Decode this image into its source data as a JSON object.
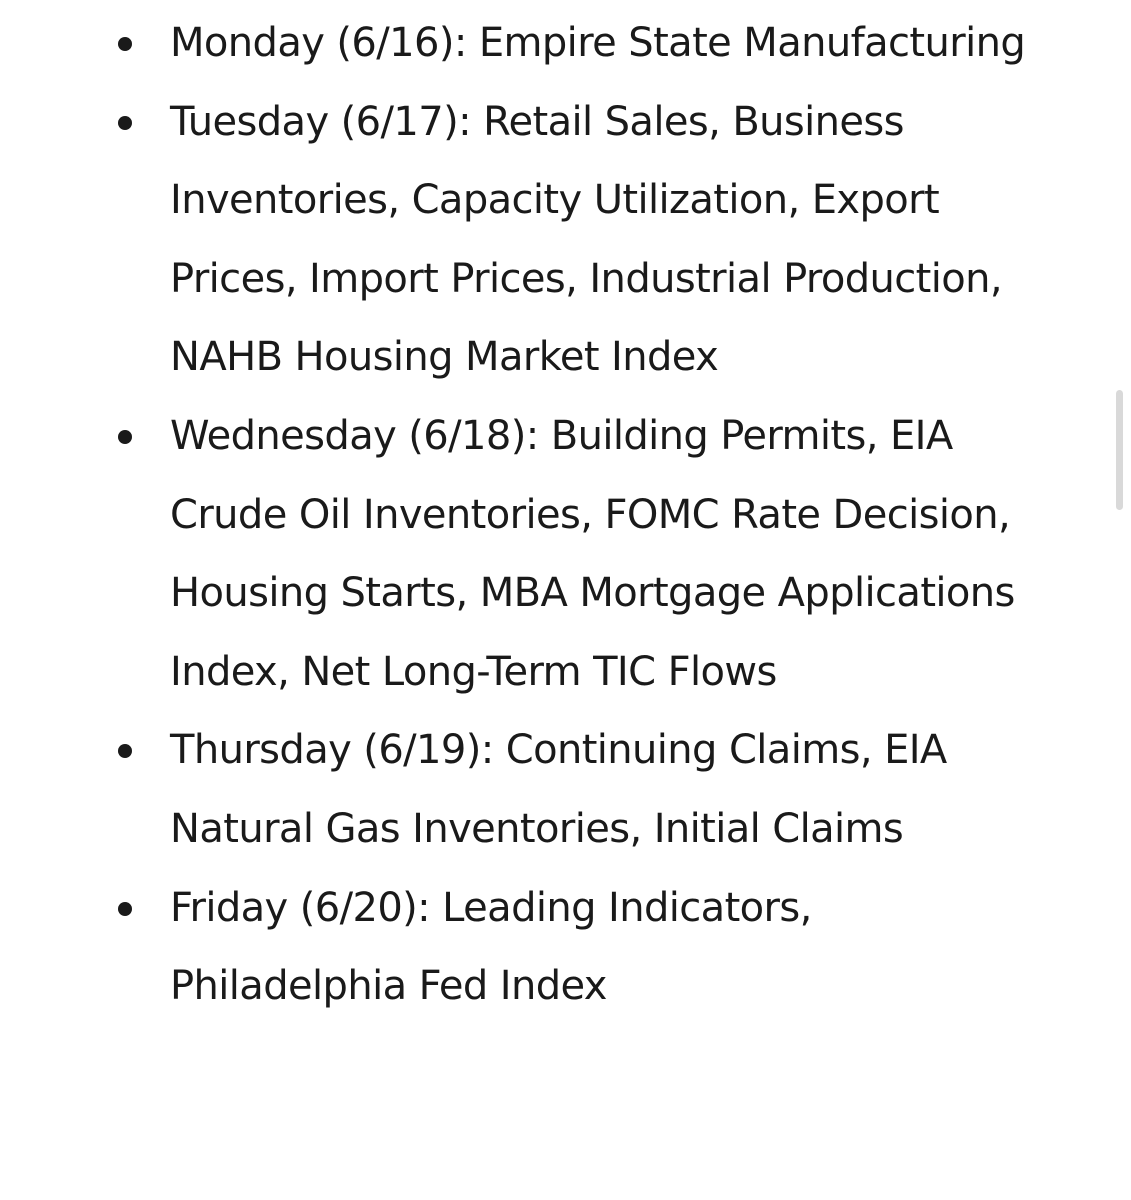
{
  "schedule": {
    "items": [
      {
        "text": "Monday (6/16): Empire State Manufacturing"
      },
      {
        "text": "Tuesday (6/17): Retail Sales, Business Inventories, Capacity Utilization, Export Prices, Import Prices, Industrial Production, NAHB Housing Market Index"
      },
      {
        "text": "Wednesday (6/18): Building Permits, EIA Crude Oil Inventories, FOMC Rate Decision, Housing Starts, MBA Mortgage Applications Index, Net Long-Term TIC Flows"
      },
      {
        "text": "Thursday (6/19): Continuing Claims, EIA Natural Gas Inventories, Initial Claims"
      },
      {
        "text": "Friday (6/20): Leading Indicators, Philadelphia Fed Index"
      }
    ]
  }
}
